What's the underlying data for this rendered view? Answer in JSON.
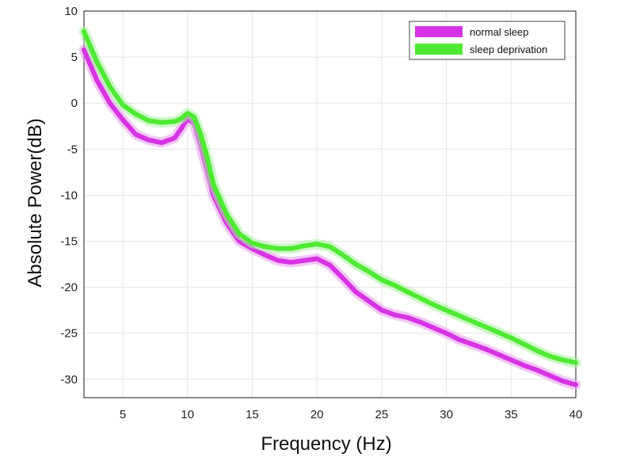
{
  "chart_data": {
    "type": "line",
    "title": "",
    "xlabel": "Frequency (Hz)",
    "ylabel": "Absolute Power(dB)",
    "xlim": [
      2,
      40
    ],
    "ylim": [
      -32,
      10
    ],
    "grid": true,
    "legend_position": "top-right",
    "x_ticks": [
      5,
      10,
      15,
      20,
      25,
      30,
      35,
      40
    ],
    "y_ticks": [
      10,
      5,
      0,
      -5,
      -10,
      -15,
      -20,
      -25,
      -30
    ],
    "series": [
      {
        "name": "normal sleep",
        "color": "#d633e3",
        "band_color": "#e79aef",
        "x": [
          2,
          3,
          4,
          5,
          6,
          7,
          8,
          9,
          9.5,
          10,
          10.5,
          11,
          11.5,
          12,
          13,
          14,
          15,
          16,
          17,
          18,
          19,
          20,
          21,
          22,
          23,
          24,
          25,
          26,
          27,
          28,
          29,
          30,
          31,
          32,
          33,
          34,
          35,
          36,
          37,
          38,
          39,
          40
        ],
        "values": [
          5.8,
          2.5,
          0,
          -1.8,
          -3.4,
          -4,
          -4.3,
          -3.8,
          -2.8,
          -1.7,
          -2.2,
          -4.5,
          -7.3,
          -10,
          -13,
          -15,
          -15.8,
          -16.5,
          -17.1,
          -17.3,
          -17.1,
          -16.9,
          -17.6,
          -19,
          -20.5,
          -21.5,
          -22.5,
          -23,
          -23.3,
          -23.8,
          -24.4,
          -25,
          -25.7,
          -26.2,
          -26.7,
          -27.3,
          -27.9,
          -28.5,
          -29,
          -29.6,
          -30.2,
          -30.6
        ]
      },
      {
        "name": "sleep deprivation",
        "color": "#4fe934",
        "band_color": "#a6f29a",
        "x": [
          2,
          3,
          4,
          5,
          6,
          7,
          8,
          9,
          9.5,
          10,
          10.5,
          11,
          11.5,
          12,
          13,
          14,
          15,
          16,
          17,
          18,
          19,
          20,
          21,
          22,
          23,
          24,
          25,
          26,
          27,
          28,
          29,
          30,
          31,
          32,
          33,
          34,
          35,
          36,
          37,
          38,
          39,
          40
        ],
        "values": [
          7.8,
          4.5,
          1.8,
          -0.2,
          -1.2,
          -1.9,
          -2.1,
          -2,
          -1.7,
          -1.1,
          -1.5,
          -3.3,
          -5.8,
          -8.8,
          -12,
          -14.2,
          -15.2,
          -15.6,
          -15.8,
          -15.8,
          -15.5,
          -15.3,
          -15.6,
          -16.5,
          -17.5,
          -18.3,
          -19.2,
          -19.8,
          -20.5,
          -21.2,
          -21.9,
          -22.5,
          -23.1,
          -23.7,
          -24.3,
          -24.9,
          -25.5,
          -26.2,
          -26.9,
          -27.5,
          -27.9,
          -28.2
        ]
      }
    ]
  }
}
